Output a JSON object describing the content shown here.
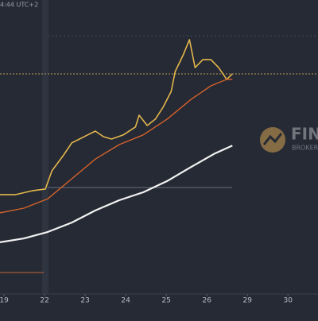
{
  "chart_data": {
    "type": "line",
    "time_label": "4:44 UTC+2",
    "annotations": [
      "FIN",
      "BROKER"
    ],
    "xlim": [
      -0.1,
      7.74
    ],
    "ylim": [
      0,
      100
    ],
    "xticks": [
      {
        "value": 0,
        "label": "19"
      },
      {
        "value": 1,
        "label": "22"
      },
      {
        "value": 2,
        "label": "23"
      },
      {
        "value": 3,
        "label": "24"
      },
      {
        "value": 4,
        "label": "25"
      },
      {
        "value": 5,
        "label": "26"
      },
      {
        "value": 6,
        "label": "29"
      },
      {
        "value": 7,
        "label": "30"
      }
    ],
    "series": [
      {
        "color": "#e3b64b",
        "x": [
          -0.1,
          0.29,
          0.69,
          1.02,
          1.18,
          1.47,
          1.67,
          1.86,
          2.06,
          2.25,
          2.45,
          2.65,
          2.94,
          3.24,
          3.33,
          3.53,
          3.73,
          3.92,
          4.12,
          4.22,
          4.41,
          4.57,
          4.71,
          4.9,
          5.1,
          5.29,
          5.49,
          5.63
        ],
        "values": [
          33.8,
          33.8,
          35.1,
          35.7,
          41.9,
          47.3,
          51.4,
          52.7,
          54.1,
          55.4,
          53.5,
          52.7,
          54.1,
          56.8,
          60.8,
          57.3,
          59.5,
          63.5,
          68.9,
          75.7,
          81.1,
          86.5,
          77,
          79.7,
          79.7,
          77,
          73,
          74.9
        ]
      },
      {
        "color": "#d4622b",
        "x": [
          -0.1,
          0.49,
          1.08,
          1.67,
          2.25,
          2.84,
          3.43,
          4.02,
          4.61,
          5.1,
          5.49,
          5.63
        ],
        "values": [
          27.6,
          29.2,
          32.4,
          39.2,
          45.9,
          50.8,
          54.1,
          59.5,
          66.2,
          70.8,
          73,
          73
        ]
      },
      {
        "color": "#f2f2f2",
        "x": [
          -0.1,
          0.49,
          1.08,
          1.67,
          2.25,
          2.84,
          3.43,
          4.02,
          4.61,
          5.2,
          5.63
        ],
        "values": [
          17.6,
          18.9,
          21.1,
          24.3,
          28.4,
          31.9,
          34.6,
          38.4,
          43.2,
          47.8,
          50.5
        ]
      }
    ]
  }
}
